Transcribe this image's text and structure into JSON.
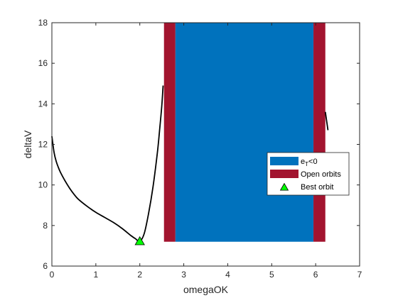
{
  "chart_data": {
    "type": "line",
    "xlabel": "omegaOK",
    "ylabel": "deltaV",
    "xlim": [
      0,
      7
    ],
    "ylim": [
      6,
      18
    ],
    "xticks": [
      "0",
      "1",
      "2",
      "3",
      "4",
      "5",
      "6",
      "7"
    ],
    "yticks": [
      "6",
      "8",
      "10",
      "12",
      "14",
      "16",
      "18"
    ],
    "grid": false,
    "legend_position": "right",
    "regions": [
      {
        "name": "Open orbits",
        "color": "#A2142F",
        "x": [
          2.55,
          2.81
        ],
        "y": [
          7.2,
          18
        ]
      },
      {
        "name": "e_T<0",
        "color": "#0072BD",
        "x": [
          2.81,
          5.95
        ],
        "y": [
          7.2,
          18
        ]
      },
      {
        "name": "Open orbits",
        "color": "#A2142F",
        "x": [
          5.95,
          6.22
        ],
        "y": [
          7.2,
          18
        ]
      }
    ],
    "series": [
      {
        "color": "#000000",
        "x": [
          0.0,
          0.05,
          0.1,
          0.15,
          0.2,
          0.3,
          0.4,
          0.5,
          0.6,
          0.8,
          1.0,
          1.2,
          1.4,
          1.6,
          1.8,
          1.9,
          2.0,
          2.1,
          2.2,
          2.3,
          2.4,
          2.45,
          2.5,
          2.53
        ],
        "y": [
          12.4,
          11.6,
          11.15,
          10.85,
          10.6,
          10.2,
          9.85,
          9.55,
          9.3,
          8.95,
          8.65,
          8.4,
          8.15,
          7.85,
          7.5,
          7.35,
          7.22,
          7.6,
          8.6,
          9.9,
          11.6,
          12.7,
          13.9,
          14.9
        ]
      },
      {
        "color": "#000000",
        "x": [
          6.22,
          6.25,
          6.28
        ],
        "y": [
          13.6,
          13.15,
          12.7
        ]
      }
    ],
    "markers": [
      {
        "name": "Best orbit",
        "shape": "triangle",
        "color": "#00FF00",
        "x": 2.0,
        "y": 7.22
      }
    ],
    "legend": [
      {
        "label_main": "e",
        "label_sub": "T",
        "label_rest": "<0",
        "swatch": "bar",
        "color": "#0072BD"
      },
      {
        "label_main": "Open orbits",
        "label_sub": "",
        "label_rest": "",
        "swatch": "bar",
        "color": "#A2142F"
      },
      {
        "label_main": "Best orbit",
        "label_sub": "",
        "label_rest": "",
        "swatch": "triangle",
        "color": "#00FF00"
      }
    ]
  }
}
